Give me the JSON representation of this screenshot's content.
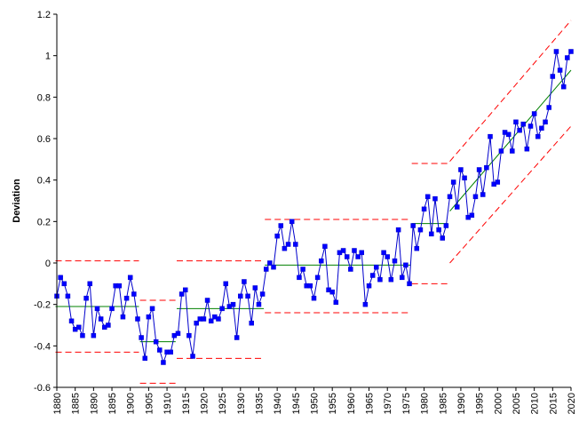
{
  "chart_data": {
    "type": "line",
    "title": "",
    "xlabel": "",
    "ylabel": "Deviation",
    "xlim": [
      1880,
      2020
    ],
    "ylim": [
      -0.6,
      1.2
    ],
    "y_ticks": [
      -0.6,
      -0.4,
      -0.2,
      0,
      0.2,
      0.4,
      0.6,
      0.8,
      1,
      1.2
    ],
    "y_tick_labels": [
      "-0.6",
      "-0.4",
      "-0.2",
      "0",
      "0.2",
      "0.4",
      "0.6",
      "0.8",
      "1",
      "1.2"
    ],
    "x_ticks": [
      1880,
      1885,
      1890,
      1895,
      1900,
      1905,
      1910,
      1915,
      1920,
      1925,
      1930,
      1935,
      1940,
      1945,
      1950,
      1955,
      1960,
      1965,
      1970,
      1975,
      1980,
      1985,
      1990,
      1995,
      2000,
      2005,
      2010,
      2015,
      2020
    ],
    "x_tick_labels": [
      "1880",
      "1885",
      "1890",
      "1895",
      "1900",
      "1905",
      "1910",
      "1915",
      "1920",
      "1925",
      "1930",
      "1935",
      "1940",
      "1945",
      "1950",
      "1955",
      "1960",
      "1965",
      "1970",
      "1975",
      "1980",
      "1985",
      "1990",
      "1995",
      "2000",
      "2005",
      "2010",
      "2015",
      "2020"
    ],
    "grid": false,
    "legend": "none",
    "colors": {
      "series": "#0000cc",
      "marker": "#0000ff",
      "center": "#008000",
      "limits": "#ff0000",
      "axis": "#000000"
    },
    "series": [
      {
        "x_start": 1880,
        "values": [
          -0.16,
          -0.07,
          -0.1,
          -0.16,
          -0.28,
          -0.32,
          -0.31,
          -0.35,
          -0.17,
          -0.1,
          -0.35,
          -0.22,
          -0.27,
          -0.31,
          -0.3,
          -0.22,
          -0.11,
          -0.11,
          -0.26,
          -0.17,
          -0.07,
          -0.15,
          -0.27,
          -0.36,
          -0.46,
          -0.26,
          -0.22,
          -0.38,
          -0.42,
          -0.48,
          -0.43,
          -0.43,
          -0.35,
          -0.34,
          -0.15,
          -0.13,
          -0.35,
          -0.45,
          -0.29,
          -0.27,
          -0.27,
          -0.18,
          -0.28,
          -0.26,
          -0.27,
          -0.22,
          -0.1,
          -0.21,
          -0.2,
          -0.36,
          -0.16,
          -0.09,
          -0.16,
          -0.29,
          -0.12,
          -0.2,
          -0.15,
          -0.03,
          0.0,
          -0.02,
          0.13,
          0.18,
          0.07,
          0.09,
          0.2,
          0.09,
          -0.07,
          -0.03,
          -0.11,
          -0.11,
          -0.17,
          -0.07,
          0.01,
          0.08,
          -0.13,
          -0.14,
          -0.19,
          0.05,
          0.06,
          0.03,
          -0.03,
          0.06,
          0.03,
          0.05,
          -0.2,
          -0.11,
          -0.06,
          -0.02,
          -0.08,
          0.05,
          0.03,
          -0.08,
          0.01,
          0.16,
          -0.07,
          -0.01,
          -0.1,
          0.18,
          0.07,
          0.16,
          0.26,
          0.32,
          0.14,
          0.31,
          0.16,
          0.12,
          0.18,
          0.32,
          0.39,
          0.27,
          0.45,
          0.41,
          0.22,
          0.23,
          0.32,
          0.45,
          0.33,
          0.46,
          0.61,
          0.38,
          0.39,
          0.54,
          0.63,
          0.62,
          0.54,
          0.68,
          0.64,
          0.67,
          0.55,
          0.66,
          0.72,
          0.61,
          0.65,
          0.68,
          0.75,
          0.9,
          1.02,
          0.93,
          0.85,
          0.99,
          1.02
        ]
      }
    ],
    "segments": [
      {
        "start": 1880,
        "end": 1902,
        "center": -0.21,
        "ucl": 0.01,
        "lcl": -0.43
      },
      {
        "start": 1903,
        "end": 1912,
        "center": -0.38,
        "ucl": -0.18,
        "lcl": -0.58
      },
      {
        "start": 1913,
        "end": 1936,
        "center": -0.22,
        "ucl": 0.01,
        "lcl": -0.46
      },
      {
        "start": 1937,
        "end": 1976,
        "center": -0.01,
        "ucl": 0.21,
        "lcl": -0.24
      },
      {
        "start": 1977,
        "end": 1986,
        "center": 0.19,
        "ucl": 0.48,
        "lcl": -0.1
      }
    ],
    "trend": {
      "start": 1987,
      "end": 2020,
      "center": [
        0.25,
        0.93
      ],
      "ucl": [
        0.49,
        1.17
      ],
      "lcl": [
        0.0,
        0.66
      ]
    }
  }
}
